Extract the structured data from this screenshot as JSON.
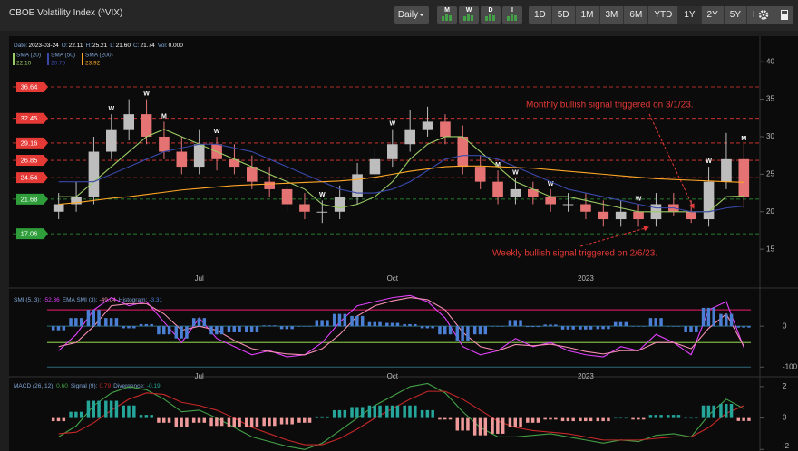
{
  "header": {
    "title": "CBOE Volatility Index (^VIX)"
  },
  "toolbar": {
    "interval": "Daily",
    "signals": [
      "M",
      "W",
      "D",
      "I"
    ],
    "ranges": [
      "1D",
      "5D",
      "1M",
      "3M",
      "6M",
      "YTD",
      "1Y",
      "2Y",
      "5Y",
      "MAX"
    ],
    "active_range": "1Y"
  },
  "chart_data": [
    {
      "type": "candlestick",
      "info": [
        {
          "label": "Date:",
          "value": "2023-03-24"
        },
        {
          "label": "O:",
          "value": "22.11"
        },
        {
          "label": "H:",
          "value": "25.21"
        },
        {
          "label": "L:",
          "value": "21.60"
        },
        {
          "label": "C:",
          "value": "21.74"
        },
        {
          "label": "Vol:",
          "value": "0.000"
        }
      ],
      "categories": [
        null,
        null,
        null,
        null,
        null,
        null,
        null,
        null,
        "Jul",
        null,
        null,
        null,
        null,
        null,
        null,
        null,
        null,
        null,
        null,
        "Oct",
        null,
        null,
        null,
        null,
        null,
        null,
        null,
        null,
        null,
        null,
        "2023",
        null,
        null,
        null,
        null,
        null,
        null,
        null,
        null,
        null
      ],
      "open": [
        20,
        21,
        22,
        28,
        31,
        33,
        30,
        28,
        26,
        29,
        27,
        26,
        24,
        23,
        21,
        20,
        20,
        22,
        25,
        27,
        29,
        31,
        32,
        30,
        26,
        24,
        22,
        23,
        22,
        21,
        21,
        20,
        19,
        20,
        19,
        21,
        20,
        19,
        24,
        27
      ],
      "high": [
        22.5,
        24,
        30,
        33,
        35,
        35,
        32,
        30,
        31,
        30,
        29,
        27.5,
        26,
        24.5,
        22.5,
        21.5,
        23.5,
        26.5,
        28.5,
        31,
        33.5,
        34,
        33,
        31.5,
        27.5,
        25.5,
        24.5,
        24,
        23,
        22.5,
        22.5,
        21.5,
        21.5,
        21,
        22.5,
        22.5,
        21.5,
        26,
        30.5,
        29
      ],
      "low": [
        19,
        20,
        21,
        27,
        29.5,
        29,
        27,
        25,
        25,
        25.5,
        25,
        23,
        22,
        20,
        19,
        18.5,
        19,
        21,
        24,
        26,
        28,
        30,
        29,
        25,
        23,
        21,
        21,
        21,
        20,
        20,
        19,
        18,
        18,
        18,
        18,
        19.5,
        18.5,
        18,
        23,
        20.5
      ],
      "close": [
        21,
        22,
        28,
        31,
        33,
        30,
        28,
        26,
        29,
        27,
        26,
        24,
        23,
        21,
        20,
        20,
        22,
        25,
        27,
        29,
        31,
        32,
        30,
        26,
        24,
        22,
        23,
        22,
        21,
        21,
        20,
        19,
        20,
        19,
        21,
        20,
        19,
        24,
        27,
        22
      ],
      "up_color": "#bdbdbd",
      "down_color": "#e57373",
      "signals": [
        null,
        null,
        null,
        "W",
        null,
        "W",
        "M",
        null,
        null,
        "W",
        null,
        null,
        null,
        null,
        null,
        "W",
        null,
        null,
        null,
        "W",
        null,
        null,
        null,
        null,
        null,
        "M",
        "W",
        null,
        "W",
        null,
        null,
        null,
        null,
        "W",
        null,
        null,
        null,
        "W",
        null,
        "M"
      ],
      "series": [
        {
          "name": "SMA (20)",
          "last": "22.10",
          "color": "#9ccc65",
          "kind": "line",
          "values": [
            22,
            22,
            24,
            26,
            28,
            30,
            31,
            30,
            29,
            28,
            27,
            26,
            25,
            24,
            23,
            21,
            20.5,
            21,
            22,
            24,
            27,
            29,
            30,
            30,
            28,
            26,
            24,
            23,
            22,
            22,
            21.5,
            21,
            20.5,
            20,
            20,
            20,
            20,
            20,
            22,
            22.1
          ]
        },
        {
          "name": "SMA (50)",
          "last": "20.75",
          "color": "#3949ab",
          "kind": "line",
          "values": [
            24,
            24,
            24,
            25,
            26,
            27,
            28,
            28.5,
            29,
            29,
            28.5,
            28,
            27,
            26,
            25,
            24,
            23,
            22.5,
            22.5,
            23,
            24,
            25.5,
            27,
            27.5,
            27.5,
            27,
            26,
            25,
            24,
            23,
            22.5,
            22,
            21.5,
            21,
            20.5,
            20.5,
            20,
            20,
            20.5,
            20.75
          ]
        },
        {
          "name": "SMA (200)",
          "last": "23.92",
          "color": "#ffa726",
          "kind": "line",
          "values": [
            21,
            21.2,
            21.5,
            21.8,
            22,
            22.3,
            22.6,
            22.9,
            23.1,
            23.3,
            23.5,
            23.6,
            23.7,
            23.8,
            23.9,
            24,
            24.1,
            24.3,
            24.6,
            25,
            25.4,
            25.7,
            26,
            26.1,
            26.1,
            26,
            25.9,
            25.8,
            25.6,
            25.4,
            25.2,
            25,
            24.8,
            24.6,
            24.4,
            24.3,
            24.2,
            24.1,
            24,
            23.92
          ]
        }
      ],
      "levels": [
        {
          "value": 36.64,
          "color": "#e53935"
        },
        {
          "value": 32.45,
          "color": "#e53935"
        },
        {
          "value": 29.16,
          "color": "#e53935"
        },
        {
          "value": 26.85,
          "color": "#e53935"
        },
        {
          "value": 24.54,
          "color": "#e53935"
        },
        {
          "value": 21.68,
          "color": "#2e9d3a"
        },
        {
          "value": 17.06,
          "color": "#2e9d3a"
        }
      ],
      "annotations": [
        {
          "text": "Monthly bullish signal triggered on 3/1/23.",
          "color": "#e53935"
        },
        {
          "text": "Weekly bullish signal triggered on 2/6/23.",
          "color": "#e53935"
        }
      ],
      "ylim": [
        12,
        42.8
      ],
      "yticks": [
        15,
        20,
        25,
        30,
        35,
        40
      ],
      "grid": false
    },
    {
      "type": "line",
      "categories": [
        null,
        null,
        null,
        null,
        null,
        null,
        null,
        null,
        "Jul",
        null,
        null,
        null,
        null,
        null,
        null,
        null,
        null,
        null,
        null,
        "Oct",
        null,
        null,
        null,
        null,
        null,
        null,
        null,
        null,
        null,
        null,
        "2023",
        null,
        null,
        null,
        null,
        null,
        null,
        null,
        null,
        null
      ],
      "series": [
        {
          "name": "SMI (5, 3):",
          "last": "-52.36",
          "color": "#e040fb",
          "kind": "line",
          "values": [
            -60,
            -20,
            40,
            70,
            50,
            60,
            10,
            -40,
            20,
            -30,
            -50,
            -70,
            -60,
            -75,
            -70,
            -40,
            10,
            50,
            60,
            70,
            75,
            60,
            20,
            -50,
            -70,
            -60,
            -30,
            -50,
            -40,
            -60,
            -70,
            -75,
            -50,
            -60,
            -20,
            -40,
            -70,
            40,
            60,
            -52.36
          ]
        },
        {
          "name": "EMA SMI (3):",
          "last": "-49.04",
          "color": "#f48fb1",
          "kind": "line",
          "values": [
            -50,
            -40,
            0,
            50,
            55,
            55,
            30,
            -10,
            0,
            -10,
            -35,
            -55,
            -62,
            -68,
            -70,
            -55,
            -20,
            25,
            50,
            62,
            70,
            65,
            40,
            -15,
            -50,
            -60,
            -45,
            -48,
            -44,
            -52,
            -62,
            -68,
            -60,
            -60,
            -40,
            -40,
            -55,
            -5,
            30,
            -49.04
          ]
        },
        {
          "name": "Histogram:",
          "last": "-3.31",
          "color": "#4a7fd4",
          "kind": "bar",
          "values": [
            -10,
            20,
            40,
            20,
            -5,
            5,
            -20,
            -30,
            20,
            -20,
            -15,
            -15,
            2,
            -7,
            0,
            15,
            30,
            25,
            10,
            8,
            5,
            -5,
            -20,
            -35,
            -20,
            0,
            15,
            -2,
            4,
            -8,
            -8,
            -7,
            10,
            0,
            20,
            0,
            -15,
            45,
            30,
            -3.31
          ]
        }
      ],
      "levels": [
        {
          "value": 40,
          "color": "#c2185b"
        },
        {
          "value": -40,
          "color": "#7cb342"
        }
      ],
      "ylim": [
        -106,
        78
      ],
      "yticks": [
        0,
        -100
      ],
      "grid": true
    },
    {
      "type": "line",
      "series": [
        {
          "name": "MACD (26, 12):",
          "last": "0.60",
          "color": "#43a047",
          "kind": "line",
          "values": [
            -1.2,
            -0.5,
            0.8,
            1.6,
            2,
            1.8,
            1.2,
            0.4,
            0.5,
            0,
            -0.6,
            -1.2,
            -1.5,
            -1.8,
            -2,
            -1.6,
            -0.8,
            0,
            0.8,
            1.4,
            2,
            2.2,
            1.6,
            0.4,
            -0.6,
            -1.2,
            -1.2,
            -1.1,
            -1,
            -1.2,
            -1.4,
            -1.6,
            -1.4,
            -1.5,
            -1.1,
            -1,
            -1.2,
            0.2,
            1.2,
            0.6
          ]
        },
        {
          "name": "Signal (9):",
          "last": "0.79",
          "color": "#c62828",
          "kind": "line",
          "values": [
            -1,
            -0.9,
            -0.3,
            0.5,
            1.2,
            1.6,
            1.5,
            1,
            0.8,
            0.5,
            0,
            -0.6,
            -1,
            -1.4,
            -1.7,
            -1.7,
            -1.3,
            -0.7,
            0,
            0.6,
            1.2,
            1.7,
            1.7,
            1.2,
            0.5,
            -0.2,
            -0.6,
            -0.8,
            -0.9,
            -1,
            -1.2,
            -1.4,
            -1.4,
            -1.4,
            -1.3,
            -1.2,
            -1.2,
            -0.6,
            0.3,
            0.79
          ]
        },
        {
          "name": "Divergence:",
          "last": "-0.19",
          "color": "#26a69a",
          "negative_color": "#ef9a9a",
          "kind": "bar",
          "values": [
            -0.2,
            0.4,
            1.1,
            1.1,
            0.8,
            0.2,
            -0.3,
            -0.6,
            -0.3,
            -0.5,
            -0.6,
            -0.6,
            -0.5,
            -0.4,
            -0.3,
            0.1,
            0.5,
            0.7,
            0.8,
            0.8,
            0.8,
            0.5,
            -0.1,
            -0.8,
            -1.1,
            -1,
            -0.6,
            -0.3,
            -0.1,
            -0.2,
            -0.2,
            -0.2,
            0,
            -0.1,
            0.2,
            0.2,
            0,
            0.8,
            0.9,
            -0.19
          ]
        }
      ],
      "ylim": [
        -2.1,
        2.4
      ],
      "yticks": [
        2,
        0,
        -2
      ],
      "grid": false
    }
  ]
}
